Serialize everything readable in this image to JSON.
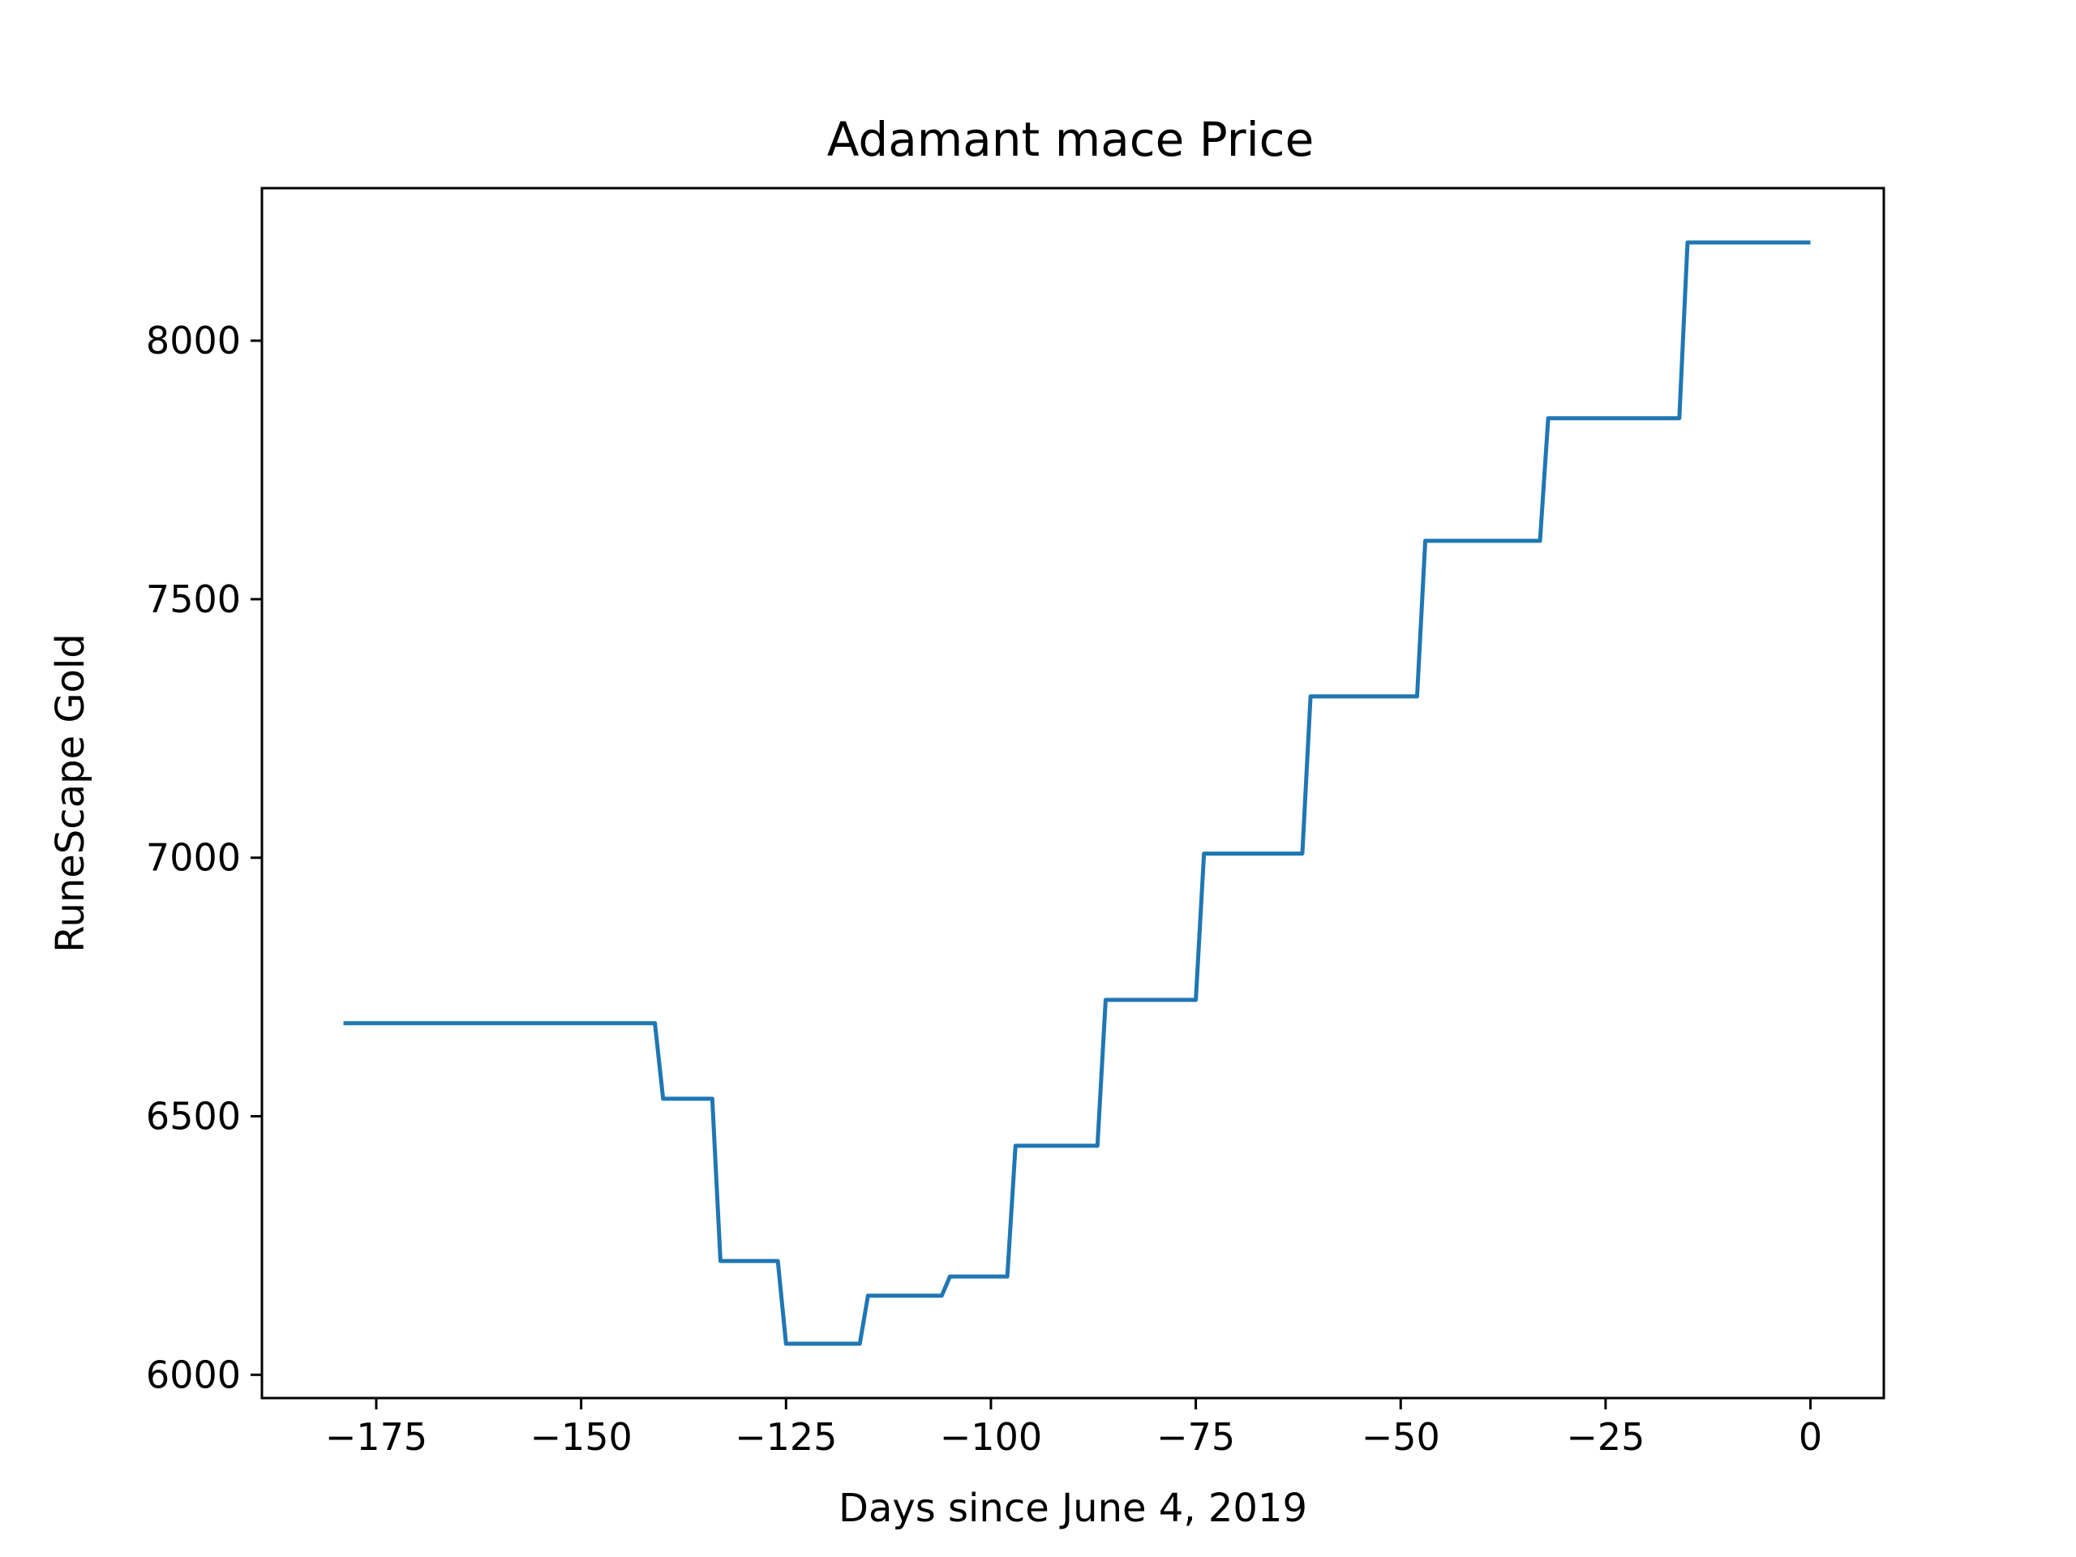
{
  "chart_data": {
    "type": "line",
    "title": "Adamant mace Price",
    "xlabel": "Days since June 4, 2019",
    "ylabel": "RuneScape Gold",
    "xlim": [
      -188.95,
      8.95
    ],
    "ylim": [
      5955,
      8295
    ],
    "xticks": [
      -175,
      -150,
      -125,
      -100,
      -75,
      -50,
      -25,
      0
    ],
    "xtick_labels": [
      "−175",
      "−150",
      "−125",
      "−100",
      "−75",
      "−50",
      "−25",
      "0"
    ],
    "yticks": [
      6000,
      6500,
      7000,
      7500,
      8000
    ],
    "ytick_labels": [
      "6000",
      "6500",
      "7000",
      "7500",
      "8000"
    ],
    "grid": false,
    "line_color": "#1f77b4",
    "series": [
      {
        "x": [
          -179,
          -141,
          -140,
          -134,
          -133,
          -126,
          -125,
          -116,
          -115,
          -106,
          -105,
          -98,
          -97,
          -87,
          -86,
          -75,
          -74,
          -62,
          -61,
          -48,
          -47,
          -33,
          -32,
          -16,
          -15,
          0
        ],
        "y": [
          6680,
          6680,
          6534,
          6534,
          6220,
          6220,
          6060,
          6060,
          6153,
          6153,
          6190,
          6190,
          6443,
          6443,
          6725,
          6725,
          7008,
          7008,
          7312,
          7312,
          7613,
          7613,
          7850,
          7850,
          8190,
          8190
        ]
      }
    ]
  }
}
